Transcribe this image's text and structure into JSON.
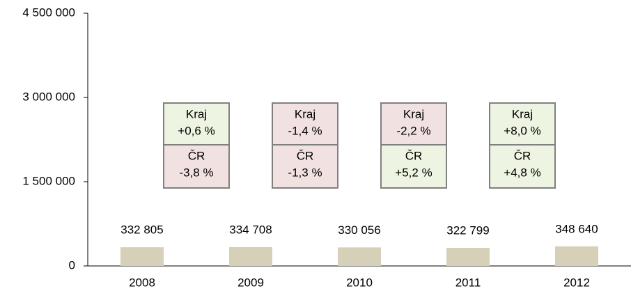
{
  "chart_data": {
    "type": "bar",
    "categories": [
      "2008",
      "2009",
      "2010",
      "2011",
      "2012"
    ],
    "values": [
      332805,
      334708,
      330056,
      322799,
      348640
    ],
    "value_labels": [
      "332 805",
      "334 708",
      "330 056",
      "322 799",
      "348 640"
    ],
    "color": "#d6d0b8",
    "ylim": [
      0,
      4500000
    ],
    "yticks": [
      0,
      {
        "value": 1500000,
        "label": "1 500 000"
      },
      {
        "value": 3000000,
        "label": "3 000 000"
      },
      {
        "value": 4500000,
        "label": "4 500 000"
      }
    ],
    "grid": false,
    "annotations": [
      {
        "top_label": "Kraj",
        "top_value": "+0,6 %",
        "bottom_label": "ČR",
        "bottom_value": "-3,8 %"
      },
      {
        "top_label": "Kraj",
        "top_value": "-1,4 %",
        "bottom_label": "ČR",
        "bottom_value": "-1,3 %"
      },
      {
        "top_label": "Kraj",
        "top_value": "-2,2 %",
        "bottom_label": "ČR",
        "bottom_value": "+5,2 %"
      },
      {
        "top_label": "Kraj",
        "top_value": "+8,0 %",
        "bottom_label": "ČR",
        "bottom_value": "+4,8 %"
      }
    ],
    "annotation_colors": {
      "up": "#eef4e2",
      "down": "#f2e1e1",
      "border": "#808080"
    }
  }
}
